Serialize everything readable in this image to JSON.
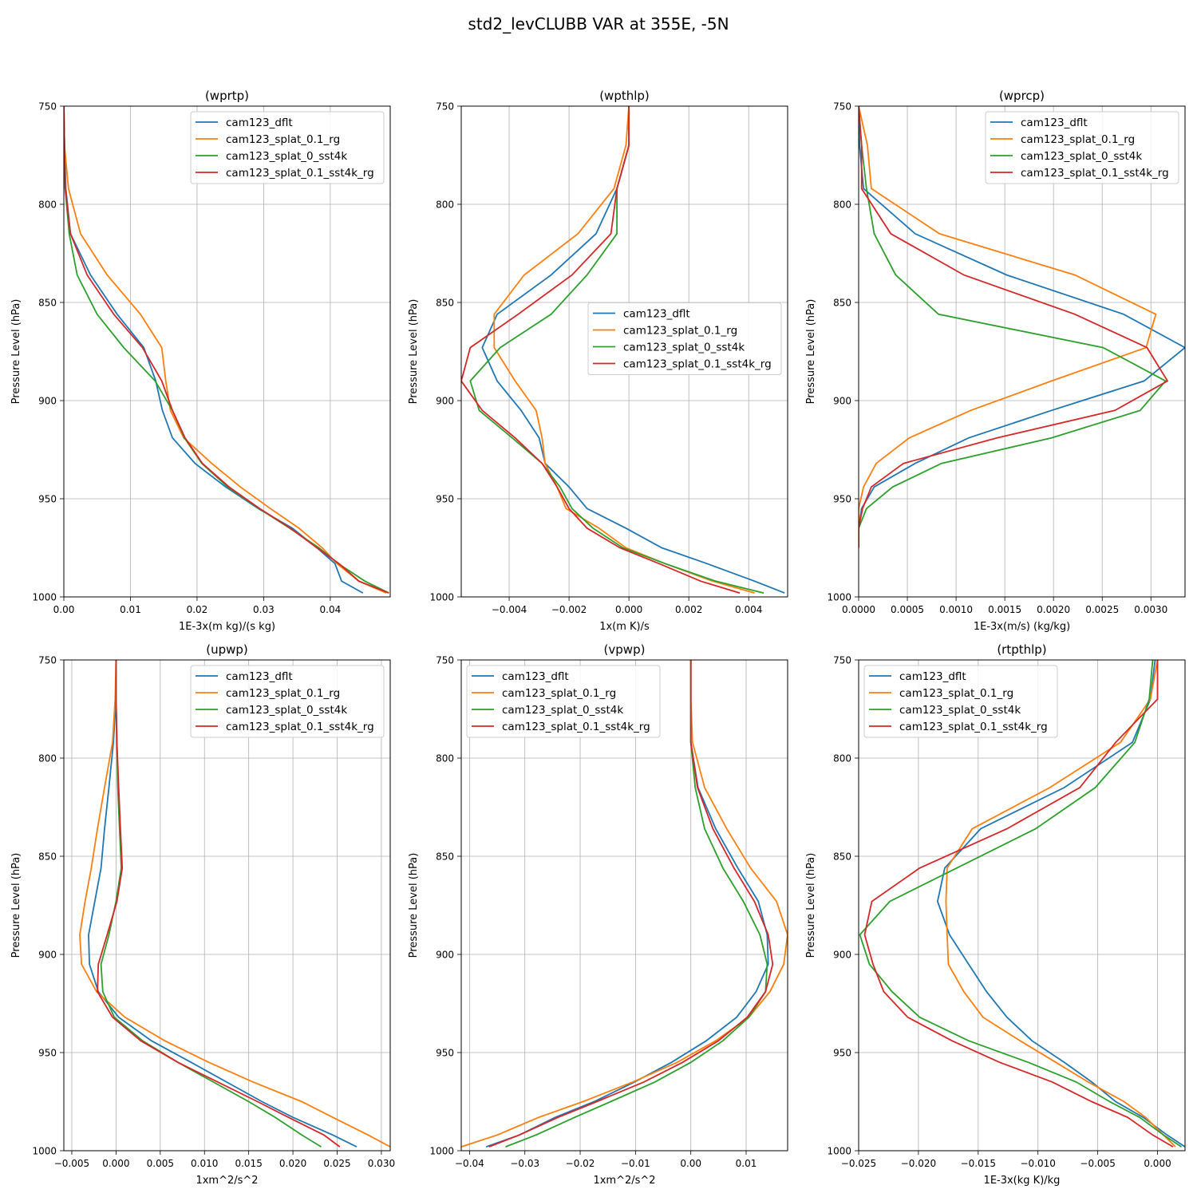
{
  "figure_title": "std2_levCLUBB VAR at 355E, -5N",
  "colors": {
    "cam123_dflt": "#1f77b4",
    "cam123_splat_0.1_rg": "#ff7f0e",
    "cam123_splat_0_sst4k": "#2ca02c",
    "cam123_splat_0.1_sst4k_rg": "#d62728"
  },
  "chart_data": [
    {
      "type": "line",
      "title": "(wprtp)",
      "xlabel": "1E-3x(m kg)/(s kg)",
      "ylabel": "Pressure Level (hPa)",
      "xlim": [
        0.0,
        0.049
      ],
      "ylim": [
        1000,
        750
      ],
      "xticks": [
        0.0,
        0.01,
        0.02,
        0.03,
        0.04
      ],
      "xticklabels": [
        "0.00",
        "0.01",
        "0.02",
        "0.03",
        "0.04"
      ],
      "yticks": [
        750,
        800,
        850,
        900,
        950,
        1000
      ],
      "grid": true,
      "legend_loc": "upper right",
      "levels": [
        750,
        770,
        792,
        815,
        836,
        856,
        873,
        890,
        905,
        919,
        932,
        944,
        955,
        965,
        975,
        983,
        992,
        998
      ],
      "series": [
        {
          "name": "cam123_dflt",
          "values": [
            0,
            0.0001,
            0.0003,
            0.001,
            0.004,
            0.008,
            0.012,
            0.0138,
            0.0148,
            0.0163,
            0.0197,
            0.0243,
            0.0292,
            0.0343,
            0.038,
            0.0407,
            0.0417,
            0.0449
          ]
        },
        {
          "name": "cam123_splat_0.1_rg",
          "values": [
            0,
            0.0001,
            0.0007,
            0.0025,
            0.0065,
            0.0115,
            0.0147,
            0.0153,
            0.016,
            0.018,
            0.0222,
            0.0265,
            0.031,
            0.0353,
            0.0388,
            0.041,
            0.0443,
            0.0484
          ]
        },
        {
          "name": "cam123_splat_0_sst4k",
          "values": [
            0,
            0.0001,
            0.0002,
            0.0008,
            0.002,
            0.005,
            0.009,
            0.0137,
            0.0163,
            0.0181,
            0.0207,
            0.0246,
            0.0293,
            0.0339,
            0.0383,
            0.0412,
            0.0452,
            0.0488
          ]
        },
        {
          "name": "cam123_splat_0.1_sst4k_rg",
          "values": [
            0,
            0.0001,
            0.0002,
            0.001,
            0.0035,
            0.0075,
            0.0118,
            0.0147,
            0.0163,
            0.0182,
            0.0208,
            0.0248,
            0.0294,
            0.034,
            0.038,
            0.0413,
            0.0443,
            0.0488
          ]
        }
      ]
    },
    {
      "type": "line",
      "title": "(wpthlp)",
      "xlabel": "1x(m K)/s",
      "ylabel": "Pressure Level (hPa)",
      "xlim": [
        -0.0056,
        0.0053
      ],
      "ylim": [
        1000,
        750
      ],
      "xticks": [
        -0.004,
        -0.002,
        0.0,
        0.002,
        0.004
      ],
      "xticklabels": [
        "−0.004",
        "−0.002",
        "0.000",
        "0.002",
        "0.004"
      ],
      "yticks": [
        750,
        800,
        850,
        900,
        950,
        1000
      ],
      "grid": true,
      "legend_loc": "center right",
      "levels": [
        750,
        770,
        792,
        815,
        836,
        856,
        873,
        890,
        905,
        919,
        932,
        944,
        955,
        965,
        975,
        983,
        992,
        998
      ],
      "series": [
        {
          "name": "cam123_dflt",
          "values": [
            0.0,
            0.0,
            -0.0004,
            -0.0011,
            -0.0026,
            -0.0044,
            -0.0049,
            -0.0044,
            -0.0036,
            -0.003,
            -0.0028,
            -0.002,
            -0.0014,
            -0.0001,
            0.0011,
            0.0026,
            0.0042,
            0.0052
          ]
        },
        {
          "name": "cam123_splat_0.1_rg",
          "values": [
            0.0,
            -0.0001,
            -0.0005,
            -0.0017,
            -0.0035,
            -0.0045,
            -0.0045,
            -0.0038,
            -0.0031,
            -0.0029,
            -0.0028,
            -0.0024,
            -0.0021,
            -0.001,
            -0.0001,
            0.0012,
            0.0028,
            0.0042
          ]
        },
        {
          "name": "cam123_splat_0_sst4k",
          "values": [
            0.0,
            0.0,
            -0.0004,
            -0.0004,
            -0.0014,
            -0.0026,
            -0.0043,
            -0.0053,
            -0.005,
            -0.0039,
            -0.0029,
            -0.0023,
            -0.0019,
            -0.0012,
            -0.0002,
            0.0012,
            0.0029,
            0.0045
          ]
        },
        {
          "name": "cam123_splat_0.1_sst4k_rg",
          "values": [
            0.0,
            0.0,
            -0.0004,
            -0.0006,
            -0.0019,
            -0.0037,
            -0.0053,
            -0.0056,
            -0.0049,
            -0.0038,
            -0.0029,
            -0.0024,
            -0.002,
            -0.0014,
            -0.0003,
            0.001,
            0.0024,
            0.0037
          ]
        }
      ]
    },
    {
      "type": "line",
      "title": "(wprcp)",
      "xlabel": "1E-3x(m/s) (kg/kg)",
      "ylabel": "Pressure Level (hPa)",
      "xlim": [
        0.0,
        0.00335
      ],
      "ylim": [
        1000,
        750
      ],
      "xticks": [
        0.0,
        0.0005,
        0.001,
        0.0015,
        0.002,
        0.0025,
        0.003
      ],
      "xticklabels": [
        "0.0000",
        "0.0005",
        "0.0010",
        "0.0015",
        "0.0020",
        "0.0025",
        "0.0030"
      ],
      "yticks": [
        750,
        800,
        850,
        900,
        950,
        1000
      ],
      "grid": true,
      "legend_loc": "upper right",
      "levels": [
        750,
        770,
        792,
        815,
        836,
        856,
        873,
        890,
        905,
        919,
        932,
        944,
        955,
        965,
        975
      ],
      "series": [
        {
          "name": "cam123_dflt",
          "values": [
            0,
            1e-05,
            5e-05,
            0.00058,
            0.00152,
            0.00272,
            0.00335,
            0.00293,
            0.00198,
            0.00113,
            0.00058,
            0.00016,
            3e-05,
            0.0,
            0.0
          ]
        },
        {
          "name": "cam123_splat_0.1_rg",
          "values": [
            0,
            9e-05,
            0.00013,
            0.00083,
            0.00222,
            0.00305,
            0.00295,
            0.00198,
            0.00115,
            0.00052,
            0.00018,
            5e-05,
            0.0,
            0.0,
            0.0
          ]
        },
        {
          "name": "cam123_splat_0_sst4k",
          "values": [
            0,
            3e-05,
            8e-05,
            0.00016,
            0.00038,
            0.00082,
            0.00251,
            0.00315,
            0.00289,
            0.00198,
            0.00085,
            0.00035,
            8e-05,
            0.0,
            0.0
          ]
        },
        {
          "name": "cam123_splat_0.1_sst4k_rg",
          "values": [
            0,
            3e-05,
            3e-05,
            0.00033,
            0.00108,
            0.00222,
            0.00296,
            0.00317,
            0.00263,
            0.00142,
            0.00046,
            0.00013,
            4e-05,
            0.0,
            0.0
          ]
        }
      ]
    },
    {
      "type": "line",
      "title": "(upwp)",
      "xlabel": "1xm^2/s^2",
      "ylabel": "Pressure Level (hPa)",
      "xlim": [
        -0.0059,
        0.031
      ],
      "ylim": [
        1000,
        750
      ],
      "xticks": [
        -0.005,
        0.0,
        0.005,
        0.01,
        0.015,
        0.02,
        0.025,
        0.03
      ],
      "xticklabels": [
        "−0.005",
        "0.000",
        "0.005",
        "0.010",
        "0.015",
        "0.020",
        "0.025",
        "0.030"
      ],
      "yticks": [
        750,
        800,
        850,
        900,
        950,
        1000
      ],
      "grid": true,
      "legend_loc": "upper right",
      "levels": [
        750,
        770,
        792,
        815,
        836,
        856,
        873,
        890,
        905,
        919,
        932,
        944,
        955,
        965,
        975,
        983,
        992,
        998
      ],
      "series": [
        {
          "name": "cam123_dflt",
          "values": [
            0.0,
            0.0,
            -0.0003,
            -0.0008,
            -0.0013,
            -0.0017,
            -0.0024,
            -0.0031,
            -0.003,
            -0.002,
            0.0003,
            0.004,
            0.0085,
            0.0125,
            0.0165,
            0.02,
            0.0245,
            0.0272
          ]
        },
        {
          "name": "cam123_splat_0.1_rg",
          "values": [
            0.0,
            -0.0001,
            -0.0004,
            -0.0013,
            -0.0021,
            -0.0028,
            -0.0035,
            -0.0041,
            -0.0039,
            -0.0022,
            0.001,
            0.0055,
            0.0105,
            0.0155,
            0.021,
            0.0245,
            0.0285,
            0.031
          ]
        },
        {
          "name": "cam123_splat_0_sst4k",
          "values": [
            0.0,
            0.0,
            0.0001,
            0.0002,
            0.0004,
            0.0006,
            0.0,
            -0.0008,
            -0.0017,
            -0.0015,
            -0.0002,
            0.003,
            0.007,
            0.011,
            0.015,
            0.018,
            0.021,
            0.0232
          ]
        },
        {
          "name": "cam123_splat_0.1_sst4k_rg",
          "values": [
            0.0,
            0.0,
            0.0001,
            0.0003,
            0.0005,
            0.0007,
            0.0001,
            -0.001,
            -0.002,
            -0.0021,
            -0.0004,
            0.0028,
            0.007,
            0.0115,
            0.016,
            0.0195,
            0.0235,
            0.0253
          ]
        }
      ]
    },
    {
      "type": "line",
      "title": "(vpwp)",
      "xlabel": "1xm^2/s^2",
      "ylabel": "Pressure Level (hPa)",
      "xlim": [
        -0.0415,
        0.0175
      ],
      "ylim": [
        1000,
        750
      ],
      "xticks": [
        -0.04,
        -0.03,
        -0.02,
        -0.01,
        0.0,
        0.01
      ],
      "xticklabels": [
        "−0.04",
        "−0.03",
        "−0.02",
        "−0.01",
        "0.00",
        "0.01"
      ],
      "yticks": [
        750,
        800,
        850,
        900,
        950,
        1000
      ],
      "grid": true,
      "legend_loc": "upper left",
      "levels": [
        750,
        770,
        792,
        815,
        836,
        856,
        873,
        890,
        905,
        919,
        932,
        944,
        955,
        965,
        975,
        983,
        992,
        998
      ],
      "series": [
        {
          "name": "cam123_dflt",
          "values": [
            0.0,
            0.0,
            0.0,
            0.0013,
            0.0045,
            0.0085,
            0.0122,
            0.0138,
            0.014,
            0.0118,
            0.0083,
            0.0028,
            -0.0035,
            -0.0102,
            -0.0175,
            -0.0245,
            -0.031,
            -0.037
          ]
        },
        {
          "name": "cam123_splat_0.1_rg",
          "values": [
            0.0,
            0.0,
            0.0003,
            0.0025,
            0.0065,
            0.0108,
            0.0155,
            0.0175,
            0.0168,
            0.0143,
            0.0105,
            0.0045,
            -0.0025,
            -0.0105,
            -0.0195,
            -0.0275,
            -0.035,
            -0.0415
          ]
        },
        {
          "name": "cam123_splat_0_sst4k",
          "values": [
            0.0,
            0.0,
            0.0,
            0.0008,
            0.0025,
            0.0058,
            0.0095,
            0.0125,
            0.0138,
            0.0135,
            0.0105,
            0.0058,
            0.0,
            -0.0065,
            -0.0145,
            -0.021,
            -0.028,
            -0.0335
          ]
        },
        {
          "name": "cam123_splat_0.1_sst4k_rg",
          "values": [
            0.0,
            0.0,
            0.0,
            0.0012,
            0.004,
            0.0078,
            0.0115,
            0.014,
            0.0148,
            0.0135,
            0.0102,
            0.005,
            -0.0015,
            -0.0085,
            -0.017,
            -0.024,
            -0.031,
            -0.0365
          ]
        }
      ]
    },
    {
      "type": "line",
      "title": "(rtpthlp)",
      "xlabel": "1E-3x(kg K)/kg",
      "ylabel": "Pressure Level (hPa)",
      "xlim": [
        -0.025,
        0.0023
      ],
      "ylim": [
        1000,
        750
      ],
      "xticks": [
        -0.025,
        -0.02,
        -0.015,
        -0.01,
        -0.005,
        0.0
      ],
      "xticklabels": [
        "−0.025",
        "−0.020",
        "−0.015",
        "−0.010",
        "−0.005",
        "0.000"
      ],
      "yticks": [
        750,
        800,
        850,
        900,
        950,
        1000
      ],
      "grid": true,
      "legend_loc": "upper left",
      "levels": [
        750,
        770,
        792,
        815,
        836,
        856,
        873,
        890,
        905,
        919,
        932,
        944,
        955,
        965,
        975,
        983,
        992,
        998
      ],
      "series": [
        {
          "name": "cam123_dflt",
          "values": [
            -0.0002,
            -0.0006,
            -0.0021,
            -0.0078,
            -0.0148,
            -0.0178,
            -0.0184,
            -0.0174,
            -0.0158,
            -0.0143,
            -0.0126,
            -0.0105,
            -0.0078,
            -0.0055,
            -0.0035,
            -0.0012,
            0.0008,
            0.0023
          ]
        },
        {
          "name": "cam123_splat_0.1_rg",
          "values": [
            0.0,
            -0.0006,
            -0.0031,
            -0.009,
            -0.0155,
            -0.0176,
            -0.0177,
            -0.0176,
            -0.0175,
            -0.0162,
            -0.0146,
            -0.0115,
            -0.0085,
            -0.0058,
            -0.0028,
            -0.001,
            0.0005,
            0.0015
          ]
        },
        {
          "name": "cam123_splat_0_sst4k",
          "values": [
            -0.0004,
            -0.0007,
            -0.0019,
            -0.0052,
            -0.0102,
            -0.0168,
            -0.0224,
            -0.0249,
            -0.0241,
            -0.0222,
            -0.0199,
            -0.0158,
            -0.0108,
            -0.0068,
            -0.004,
            -0.0015,
            0.0005,
            0.002
          ]
        },
        {
          "name": "cam123_splat_0.1_sst4k_rg",
          "values": [
            0.0,
            0.0,
            -0.0035,
            -0.0065,
            -0.0126,
            -0.0199,
            -0.0239,
            -0.0245,
            -0.0238,
            -0.0229,
            -0.0209,
            -0.0172,
            -0.0132,
            -0.0088,
            -0.0055,
            -0.0025,
            -0.0004,
            0.0013
          ]
        }
      ]
    }
  ]
}
